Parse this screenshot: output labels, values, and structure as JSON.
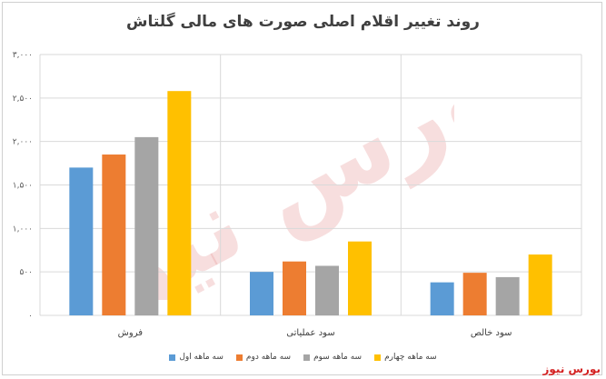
{
  "chart_data": {
    "type": "bar",
    "title": "روند تغییر اقلام اصلی صورت های مالی گلتاش",
    "categories": [
      "فروش",
      "سود عملیاتی",
      "سود خالص"
    ],
    "series": [
      {
        "name": "سه ماهه اول",
        "color": "#5B9BD5",
        "values": [
          1700,
          500,
          380
        ]
      },
      {
        "name": "سه ماهه دوم",
        "color": "#ED7D31",
        "values": [
          1850,
          620,
          490
        ]
      },
      {
        "name": "سه ماهه سوم",
        "color": "#A5A5A5",
        "values": [
          2050,
          570,
          440
        ]
      },
      {
        "name": "سه ماهه چهارم",
        "color": "#FFC000",
        "values": [
          2580,
          850,
          700
        ]
      }
    ],
    "yticks": [
      "۳,۰۰۰",
      "۲,۵۰۰",
      "۲,۰۰۰",
      "۱,۵۰۰",
      "۱,۰۰۰",
      "۵۰۰",
      "۰"
    ],
    "ylim": [
      0,
      3000
    ],
    "grid": true,
    "legend_position": "bottom"
  },
  "watermark": {
    "text": "بورس نیوز",
    "logo_text": "بورس نیوز",
    "color": "#d42020"
  }
}
